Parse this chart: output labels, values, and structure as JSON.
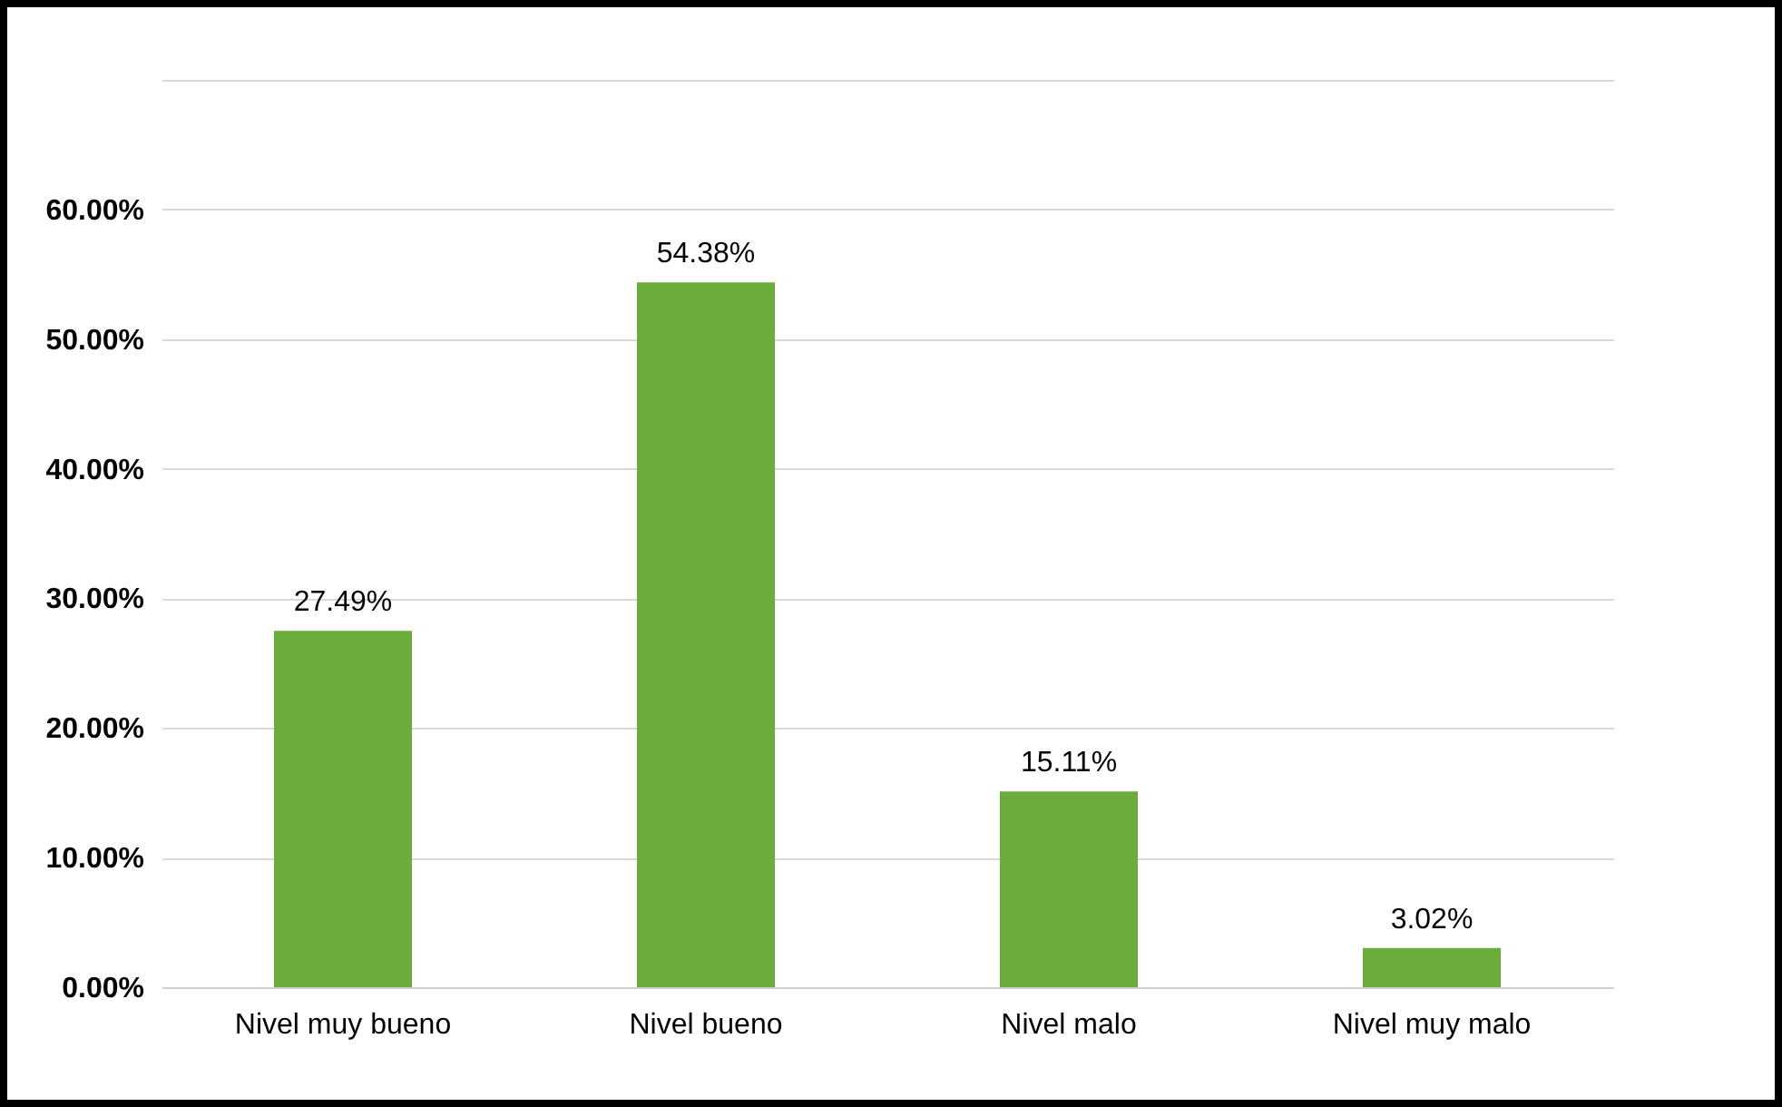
{
  "chart_data": {
    "type": "bar",
    "categories": [
      "Nivel muy bueno",
      "Nivel bueno",
      "Nivel malo",
      "Nivel muy malo"
    ],
    "values": [
      27.49,
      54.38,
      15.11,
      3.02
    ],
    "value_labels": [
      "27.49%",
      "54.38%",
      "15.11%",
      "3.02%"
    ],
    "color": "#6aab3c",
    "ylim": [
      0,
      70
    ],
    "yticks": [
      {
        "value": 0,
        "label": "0.00%"
      },
      {
        "value": 10,
        "label": "10.00%"
      },
      {
        "value": 20,
        "label": "20.00%"
      },
      {
        "value": 30,
        "label": "30.00%"
      },
      {
        "value": 40,
        "label": "40.00%"
      },
      {
        "value": 50,
        "label": "50.00%"
      },
      {
        "value": 60,
        "label": "60.00%"
      },
      {
        "value": 70,
        "label": null
      }
    ],
    "grid": "y"
  }
}
